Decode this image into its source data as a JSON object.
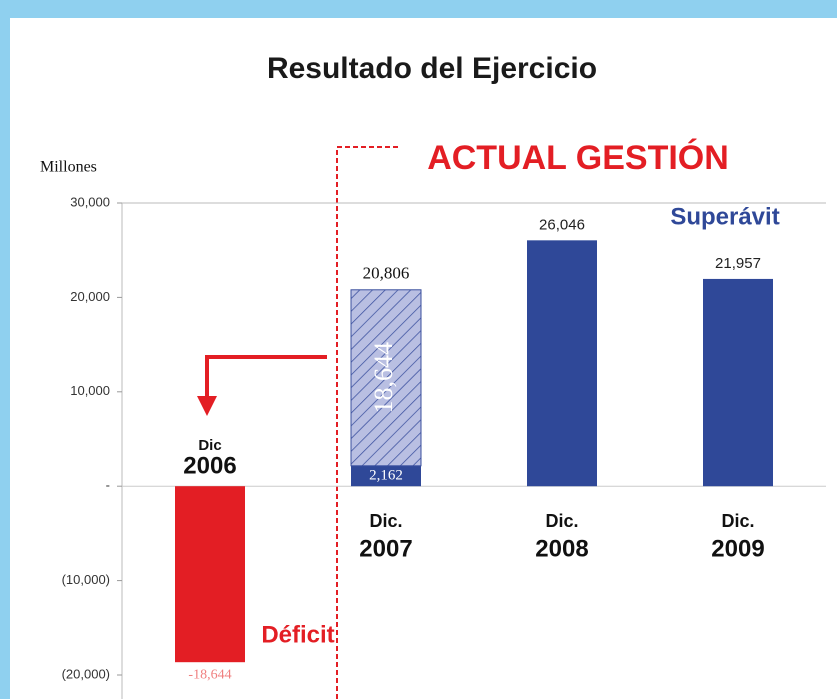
{
  "chart_data": {
    "type": "bar",
    "title": "Resultado del Ejercicio",
    "annotation": "ACTUAL GESTIÓN",
    "y_label": "Millones",
    "surplus_label": "Superávit",
    "deficit_label": "Déficit",
    "category_months": [
      "Dic",
      "Dic.",
      "Dic.",
      "Dic."
    ],
    "categories": [
      "2006",
      "2007",
      "2008",
      "2009"
    ],
    "series": [
      {
        "color": "#2f4898",
        "negative_color": "#e31e24",
        "values": [
          -18644,
          2162,
          26046,
          21957
        ],
        "value_labels": [
          "-18,644",
          "2,162",
          "26,046",
          "21,957"
        ]
      },
      {
        "color": "#b9bfe2",
        "hatch_color": "#3a4f9e",
        "values": [
          null,
          18644,
          null,
          null
        ],
        "value_labels": [
          null,
          "18,644",
          null,
          null
        ]
      }
    ],
    "totals": [
      null,
      20806,
      null,
      null
    ],
    "total_labels": [
      null,
      "20,806",
      null,
      null
    ],
    "ylim": [
      -20000,
      30000
    ],
    "yticks": [
      {
        "value": -20000,
        "label": "(20,000)"
      },
      {
        "value": -10000,
        "label": "(10,000)"
      },
      {
        "value": 0,
        "label": "-"
      },
      {
        "value": 10000,
        "label": "10,000"
      },
      {
        "value": 20000,
        "label": "20,000"
      },
      {
        "value": 30000,
        "label": "30,000"
      }
    ]
  }
}
